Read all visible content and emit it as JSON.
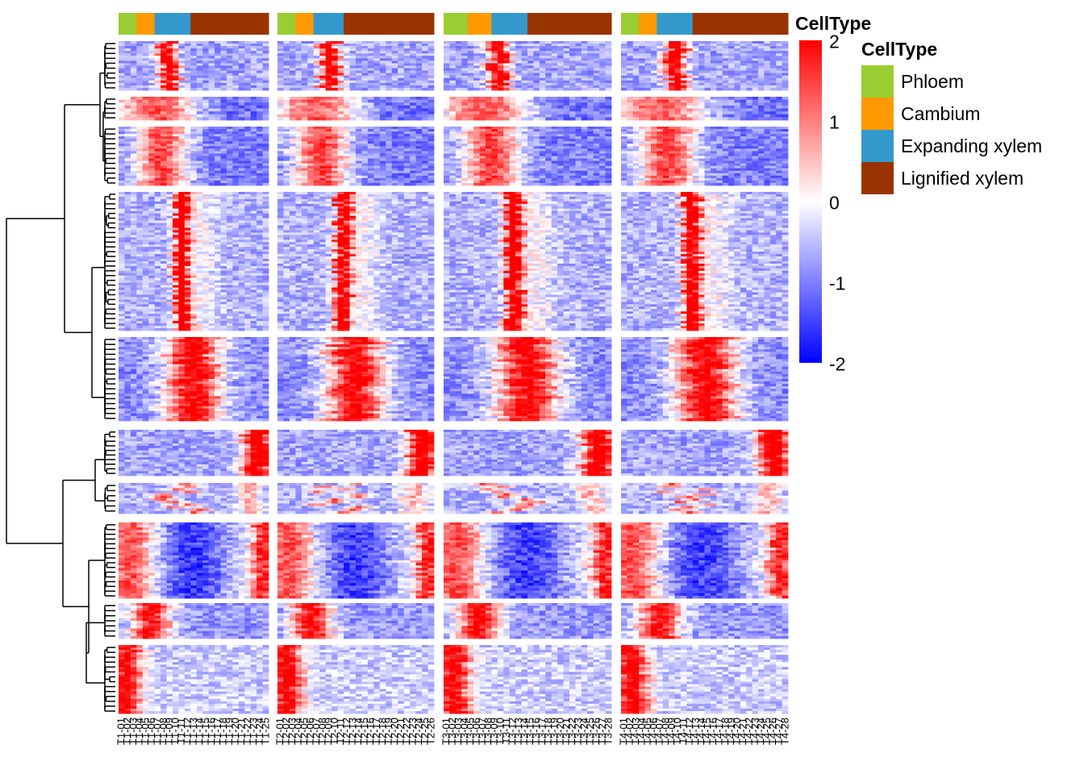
{
  "legend": {
    "annotation_title": "CellType",
    "colorbar_ticks": [
      "2",
      "1",
      "0",
      "-1",
      "-2"
    ],
    "celltype_title": "CellType",
    "celltypes": [
      {
        "label": "Phloem",
        "color": "#9ACD32"
      },
      {
        "label": "Cambium",
        "color": "#FF9900"
      },
      {
        "label": "Expanding xylem",
        "color": "#3399CC"
      },
      {
        "label": "Lignified xylem",
        "color": "#993300"
      }
    ]
  },
  "chart_data": {
    "type": "heatmap",
    "color_scale": {
      "min": -2,
      "mid": 0,
      "max": 2,
      "low_color": "#0000ff",
      "mid_color": "#ffffff",
      "high_color": "#ff0000"
    },
    "row_dendrogram": true,
    "panels": [
      {
        "tree": "T1",
        "columns": [
          "T1-01",
          "T1-02",
          "T1-03",
          "T1-04",
          "T1-05",
          "T1-06",
          "T1-07",
          "T1-08",
          "T1-09",
          "T1-10",
          "T1-11",
          "T1-12",
          "T1-13",
          "T1-14",
          "T1-15",
          "T1-16",
          "T1-17",
          "T1-18",
          "T1-19",
          "T1-20",
          "T1-21",
          "T1-22",
          "T1-23",
          "T1-24",
          "T1-25"
        ],
        "celltype_counts": {
          "Phloem": 3,
          "Cambium": 3,
          "Expanding xylem": 6,
          "Lignified xylem": 13
        }
      },
      {
        "tree": "T2",
        "columns": [
          "T2-01",
          "T2-02",
          "T2-03",
          "T2-04",
          "T2-05",
          "T2-06",
          "T2-07",
          "T2-08",
          "T2-09",
          "T2-10",
          "T2-11",
          "T2-12",
          "T2-13",
          "T2-14",
          "T2-15",
          "T2-16",
          "T2-17",
          "T2-18",
          "T2-19",
          "T2-20",
          "T2-21",
          "T2-22",
          "T2-23",
          "T2-24",
          "T2-25",
          "T2-26"
        ],
        "celltype_counts": {
          "Phloem": 3,
          "Cambium": 3,
          "Expanding xylem": 5,
          "Lignified xylem": 15
        }
      },
      {
        "tree": "T3",
        "columns": [
          "T3-01",
          "T3-02",
          "T3-03",
          "T3-04",
          "T3-05",
          "T3-06",
          "T3-07",
          "T3-08",
          "T3-09",
          "T3-10",
          "T3-11",
          "T3-12",
          "T3-13",
          "T3-14",
          "T3-15",
          "T3-16",
          "T3-17",
          "T3-18",
          "T3-19",
          "T3-20",
          "T3-21",
          "T3-22",
          "T3-23",
          "T3-24",
          "T3-25",
          "T3-26",
          "T3-27",
          "T3-28"
        ],
        "celltype_counts": {
          "Phloem": 4,
          "Cambium": 4,
          "Expanding xylem": 6,
          "Lignified xylem": 14
        }
      },
      {
        "tree": "T4",
        "columns": [
          "T4-01",
          "T4-02",
          "T4-03",
          "T4-04",
          "T4-05",
          "T4-06",
          "T4-07",
          "T4-08",
          "T4-09",
          "T4-10",
          "T4-11",
          "T4-12",
          "T4-13",
          "T4-14",
          "T4-15",
          "T4-16",
          "T4-17",
          "T4-18",
          "T4-19",
          "T4-20",
          "T4-21",
          "T4-22",
          "T4-23",
          "T4-24",
          "T4-25",
          "T4-26",
          "T4-27",
          "T4-28"
        ],
        "celltype_counts": {
          "Phloem": 3,
          "Cambium": 3,
          "Expanding xylem": 6,
          "Lignified xylem": 16
        }
      }
    ],
    "row_clusters": [
      {
        "id": 1,
        "rows": 20,
        "pattern": "expanding-xylem peak"
      },
      {
        "id": 2,
        "rows": 8,
        "pattern": "cambium to early xylem high"
      },
      {
        "id": 3,
        "rows": 24,
        "pattern": "cambium to early xylem high"
      },
      {
        "id": 4,
        "rows": 58,
        "pattern": "narrow early xylem peak"
      },
      {
        "id": 5,
        "rows": 34,
        "pattern": "broad expanding xylem high"
      },
      {
        "id": 6,
        "rows": 20,
        "pattern": "late lignified xylem high"
      },
      {
        "id": 7,
        "rows": 12,
        "pattern": "mixed xylem high"
      },
      {
        "id": 8,
        "rows": 30,
        "pattern": "phloem and late xylem high"
      },
      {
        "id": 9,
        "rows": 14,
        "pattern": "phloem to cambium high"
      },
      {
        "id": 10,
        "rows": 28,
        "pattern": "phloem high"
      }
    ]
  }
}
